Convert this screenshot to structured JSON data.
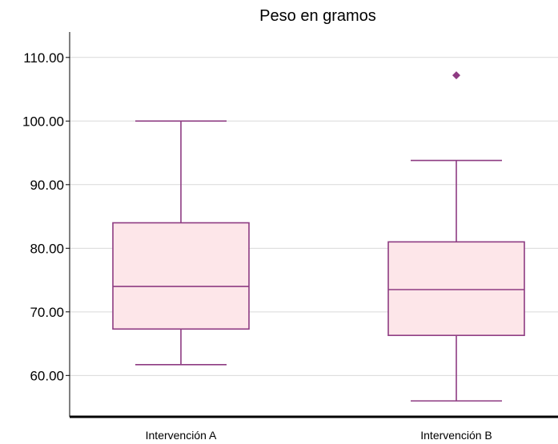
{
  "chart_data": {
    "type": "boxplot",
    "title": "Peso en gramos",
    "xlabel": "",
    "ylabel": "",
    "ylim": [
      53.5,
      114
    ],
    "yticks": [
      60,
      70,
      80,
      90,
      100,
      110
    ],
    "ytick_labels": [
      "60.00",
      "70.00",
      "80.00",
      "90.00",
      "100.00",
      "110.00"
    ],
    "grid": true,
    "categories": [
      "Intervención A",
      "Intervención B"
    ],
    "boxes": [
      {
        "whisker_low": 61.7,
        "q1": 67.3,
        "median": 74.0,
        "q3": 84.0,
        "whisker_high": 100.0,
        "outliers": []
      },
      {
        "whisker_low": 56.0,
        "q1": 66.3,
        "median": 73.5,
        "q3": 81.0,
        "whisker_high": 93.8,
        "outliers": [
          107.2
        ]
      }
    ],
    "colors": {
      "box_fill": "#fde6e9",
      "box_stroke": "#8e3b82",
      "grid": "#d9d9d9",
      "axis": "#000000"
    }
  }
}
